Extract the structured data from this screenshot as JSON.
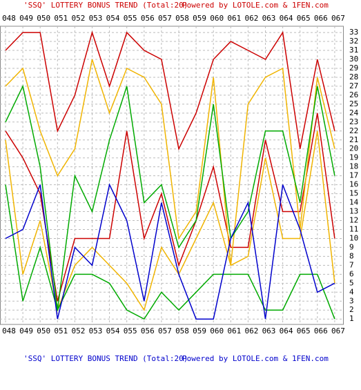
{
  "chart_data": {
    "type": "line",
    "title": "'SSQ' LOTTERY BONUS TREND (Total:20)",
    "credit": "Powered by LOTOLE.com & 1FEN.com",
    "categories": [
      "048",
      "049",
      "050",
      "051",
      "052",
      "053",
      "054",
      "055",
      "056",
      "057",
      "058",
      "059",
      "060",
      "061",
      "062",
      "063",
      "064",
      "065",
      "066",
      "067"
    ],
    "series": [
      {
        "color": "#cc0000",
        "values": [
          31,
          33,
          33,
          22,
          26,
          33,
          27,
          33,
          31,
          30,
          20,
          24,
          30,
          32,
          31,
          30,
          33,
          20,
          30,
          22
        ]
      },
      {
        "color": "#cc0000",
        "values": [
          22,
          19,
          15,
          3,
          10,
          10,
          10,
          22,
          10,
          15,
          7,
          12,
          18,
          9,
          9,
          21,
          13,
          13,
          24,
          10
        ]
      },
      {
        "color": "#f0b400",
        "values": [
          27,
          29,
          22,
          17,
          20,
          30,
          24,
          29,
          28,
          25,
          10,
          13,
          28,
          7,
          25,
          28,
          29,
          11,
          28,
          20
        ]
      },
      {
        "color": "#f0b400",
        "values": [
          21,
          6,
          12,
          2,
          7,
          9,
          7,
          5,
          2,
          9,
          6,
          10,
          14,
          7,
          8,
          19,
          10,
          10,
          22,
          5
        ]
      },
      {
        "color": "#00aa00",
        "values": [
          23,
          27,
          18,
          2,
          17,
          13,
          21,
          27,
          14,
          16,
          9,
          12,
          25,
          10,
          13,
          22,
          22,
          14,
          27,
          17
        ]
      },
      {
        "color": "#00aa00",
        "values": [
          16,
          3,
          9,
          2,
          6,
          6,
          5,
          2,
          1,
          4,
          2,
          4,
          6,
          6,
          6,
          2,
          2,
          6,
          6,
          1
        ]
      },
      {
        "color": "#0000cc",
        "values": [
          10,
          11,
          16,
          1,
          9,
          7,
          16,
          12,
          3,
          14,
          6,
          1,
          1,
          10,
          14,
          1,
          16,
          11,
          4,
          5
        ]
      }
    ],
    "ylim": [
      0.4,
      33.7
    ],
    "yticks": [
      1,
      2,
      3,
      4,
      5,
      6,
      7,
      8,
      9,
      10,
      11,
      12,
      13,
      14,
      15,
      16,
      17,
      18,
      19,
      20,
      21,
      22,
      23,
      24,
      25,
      26,
      27,
      28,
      29,
      30,
      31,
      32,
      33
    ],
    "grid": true
  }
}
